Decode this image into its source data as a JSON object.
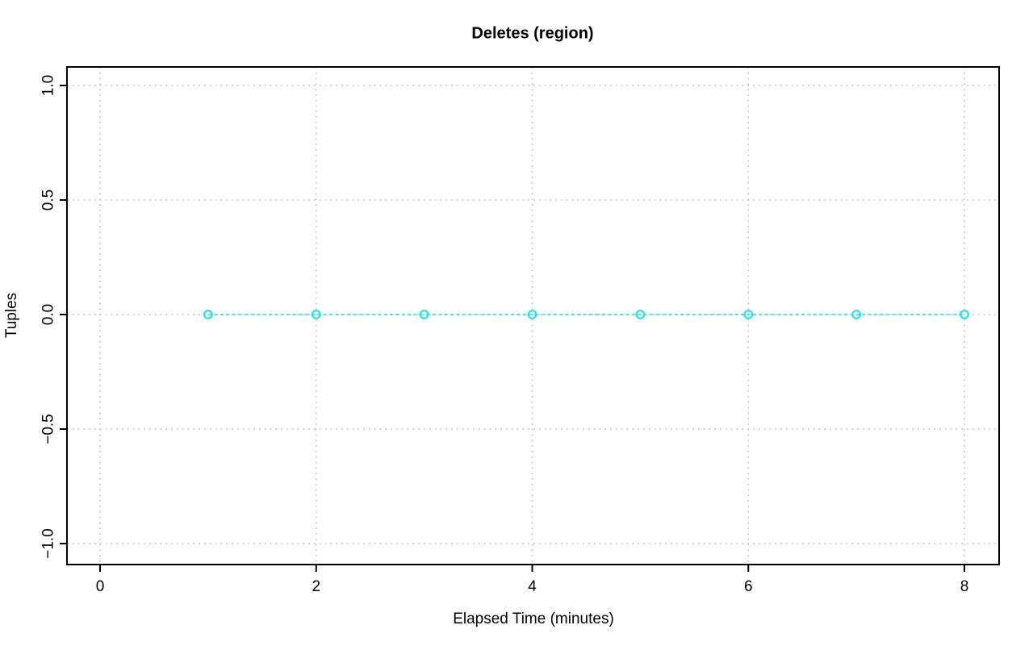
{
  "chart_data": {
    "type": "line",
    "title": "Deletes (region)",
    "xlabel": "Elapsed Time (minutes)",
    "ylabel": "Tuples",
    "x": [
      1,
      2,
      3,
      4,
      5,
      6,
      7,
      8
    ],
    "series": [
      {
        "name": "Deletes",
        "values": [
          0,
          0,
          0,
          0,
          0,
          0,
          0,
          0
        ],
        "color": "#00E5E5",
        "marker": "open-circle",
        "line_style": "dashed"
      }
    ],
    "xlim": [
      -0.33,
      8.33
    ],
    "ylim": [
      -1.08,
      1.08
    ],
    "xticks": {
      "values": [
        0,
        2,
        4,
        6,
        8
      ],
      "labels": [
        "0",
        "2",
        "4",
        "6",
        "8"
      ]
    },
    "yticks": {
      "values": [
        1.0,
        0.5,
        0.0,
        -0.5,
        -1.0
      ],
      "labels": [
        "1.0",
        "0.5",
        "0.0",
        "−0.5",
        "−1.0"
      ]
    },
    "grid": true,
    "grid_color": "#C9C9C9",
    "grid_style": "dotted",
    "axis_color": "#000000",
    "background": "#FFFFFF",
    "legend": null
  }
}
